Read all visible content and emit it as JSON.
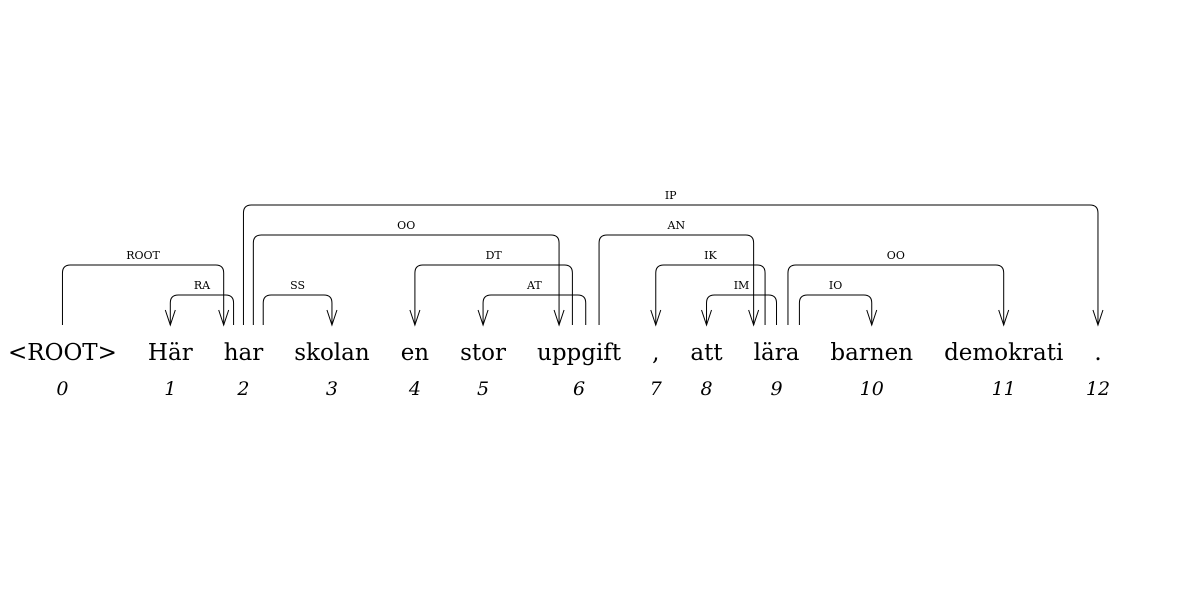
{
  "tokens": [
    {
      "index": "0",
      "form": "<ROOT>"
    },
    {
      "index": "1",
      "form": "Här"
    },
    {
      "index": "2",
      "form": "har"
    },
    {
      "index": "3",
      "form": "skolan"
    },
    {
      "index": "4",
      "form": "en"
    },
    {
      "index": "5",
      "form": "stor"
    },
    {
      "index": "6",
      "form": "uppgift"
    },
    {
      "index": "7",
      "form": ","
    },
    {
      "index": "8",
      "form": "att"
    },
    {
      "index": "9",
      "form": "lära"
    },
    {
      "index": "10",
      "form": "barnen"
    },
    {
      "index": "11",
      "form": "demokrati"
    },
    {
      "index": "12",
      "form": "."
    }
  ],
  "arcs": [
    {
      "head": 0,
      "dependent": 2,
      "label": "ROOT"
    },
    {
      "head": 2,
      "dependent": 1,
      "label": "RA"
    },
    {
      "head": 2,
      "dependent": 3,
      "label": "SS"
    },
    {
      "head": 2,
      "dependent": 6,
      "label": "OO"
    },
    {
      "head": 2,
      "dependent": 12,
      "label": "IP"
    },
    {
      "head": 6,
      "dependent": 4,
      "label": "DT"
    },
    {
      "head": 6,
      "dependent": 5,
      "label": "AT"
    },
    {
      "head": 6,
      "dependent": 9,
      "label": "AN"
    },
    {
      "head": 9,
      "dependent": 7,
      "label": "IK"
    },
    {
      "head": 9,
      "dependent": 8,
      "label": "IM"
    },
    {
      "head": 9,
      "dependent": 10,
      "label": "IO"
    },
    {
      "head": 9,
      "dependent": 11,
      "label": "OO"
    }
  ]
}
